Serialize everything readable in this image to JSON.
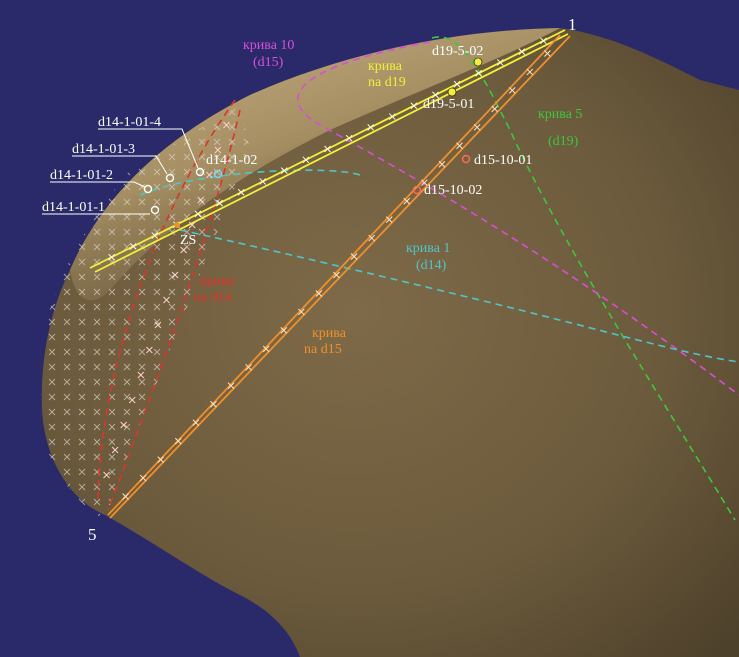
{
  "colors": {
    "background": "#2a2a6a",
    "bone": "#8a7450",
    "yellow": "#f2ee3a",
    "orange": "#f0902a",
    "red": "#e0322a",
    "green": "#3cc83c",
    "magenta": "#d84ed8",
    "cyan": "#4fc6c6",
    "white": "#ffffff"
  },
  "labels": {
    "point_1": "1",
    "point_5": "5",
    "zs": "ZS",
    "d14_1_01_4": "d14-1-01-4",
    "d14_1_01_3": "d14-1-01-3",
    "d14_1_01_2": "d14-1-01-2",
    "d14_1_01_1": "d14-1-01-1",
    "d14_1_02": "d14-1-02",
    "d19_5_02": "d19-5-02",
    "d19_5_01": "d19-5-01",
    "d15_10_01": "d15-10-01",
    "d15_10_02": "d15-10-02"
  },
  "curves": {
    "kriva10_a": "крива 10",
    "kriva10_b": "(d15)",
    "kriva_d19_a": "крива",
    "kriva_d19_b": "na d19",
    "kriva5_a": "крива 5",
    "kriva5_b": "(d19)",
    "kriva1_a": "крива 1",
    "kriva1_b": "(d14)",
    "kriva_d14_a": "крива",
    "kriva_d14_b": "na d14",
    "kriva_d15_a": "крива",
    "kriva_d15_b": "na d15"
  }
}
